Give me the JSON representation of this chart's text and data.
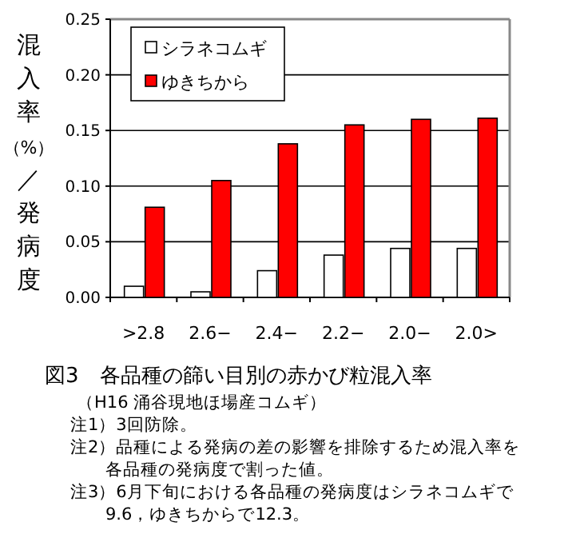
{
  "chart_data": {
    "type": "bar",
    "title": "図3　各品種の篩い目別の赤かび粒混入率",
    "ylabel": "混入率（%）／発病度",
    "categories": [
      ">2.8",
      "2.6−",
      "2.4−",
      "2.2−",
      "2.0−",
      "2.0>"
    ],
    "series": [
      {
        "name": "シラネコムギ",
        "color": "#ffffff",
        "values": [
          0.01,
          0.005,
          0.024,
          0.038,
          0.044,
          0.044
        ]
      },
      {
        "name": "ゆきちから",
        "color": "#ff0000",
        "values": [
          0.081,
          0.105,
          0.138,
          0.155,
          0.16,
          0.161
        ]
      }
    ],
    "ylim": [
      0,
      0.25
    ],
    "yticks": [
      {
        "value": 0,
        "label": "0.00"
      },
      {
        "value": 0.05,
        "label": "0.05"
      },
      {
        "value": 0.1,
        "label": "0.10"
      },
      {
        "value": 0.15,
        "label": "0.15"
      },
      {
        "value": 0.2,
        "label": "0.20"
      },
      {
        "value": 0.25,
        "label": "0.25"
      }
    ],
    "grid": "y",
    "legend": "top left",
    "annotations": [
      "（H16 涌谷現地ほ場産コムギ）",
      "注1）3回防除。",
      "注2）品種による発病の差の影響を排除するため混入率を各品種の発病度で割った値。",
      "注3）6月下旬における各品種の発病度はシラネコムギで9.6，ゆきちからで12.3。"
    ]
  }
}
